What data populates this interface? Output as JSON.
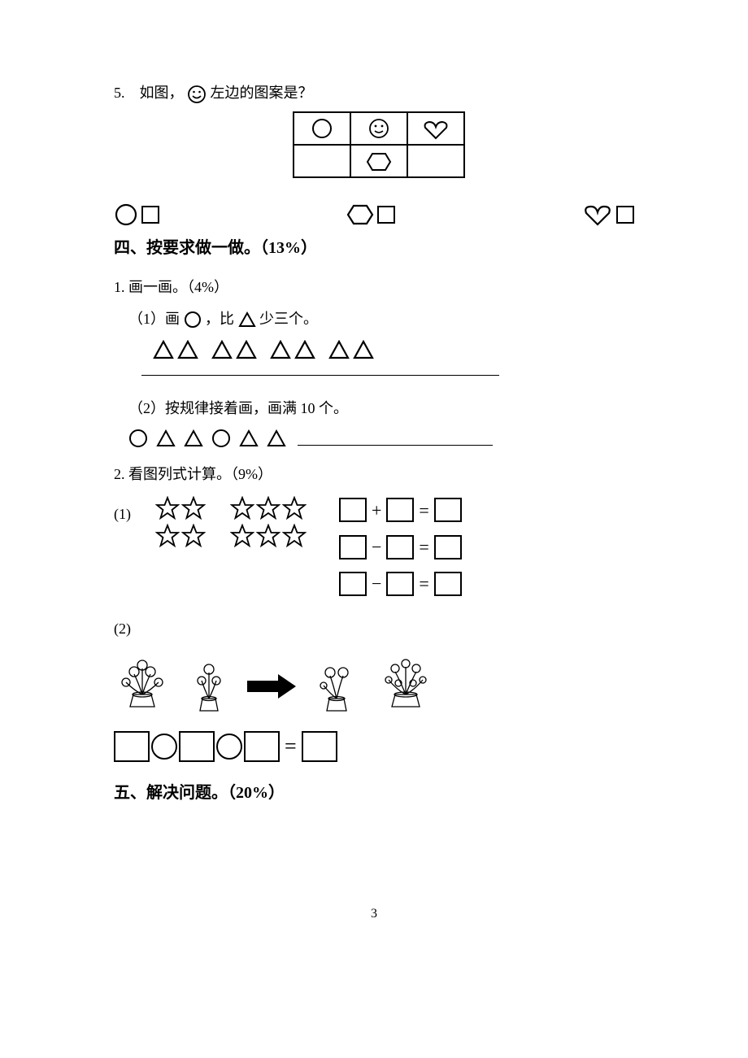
{
  "q5": {
    "prefix": "5.　如图，",
    "suffix": " 左边的图案是？"
  },
  "table": {
    "row1": [
      "circle",
      "smiley",
      "heart"
    ],
    "row2": [
      "",
      "hexagon",
      ""
    ]
  },
  "choices": [
    {
      "shape": "circle"
    },
    {
      "shape": "hexagon"
    },
    {
      "shape": "heart"
    }
  ],
  "section4": {
    "title": "四、按要求做一做。（13%）",
    "q1": {
      "heading": "1. 画一画。（4%）",
      "a_prefix": "（1）画 ",
      "a_mid": " ，比",
      "a_suffix": " 少三个。",
      "triangles_count": 8,
      "b_text": "（2）按规律接着画，画满 10 个。",
      "pattern": [
        "circle",
        "triangle",
        "triangle",
        "circle",
        "triangle",
        "triangle"
      ]
    },
    "q2": {
      "heading": "2. 看图列式计算。（9%）",
      "part1_label": "(1)",
      "stars_left": {
        "rows": [
          2,
          2
        ]
      },
      "stars_right": {
        "rows": [
          3,
          3
        ]
      },
      "equations": [
        {
          "op1": "+",
          "op2": "="
        },
        {
          "op1": "−",
          "op2": "="
        },
        {
          "op1": "−",
          "op2": "="
        }
      ],
      "part2_label": "(2)"
    }
  },
  "section5": {
    "title": "五、解决问题。（20%）"
  },
  "pagenum": "3",
  "colors": {
    "stroke": "#000000",
    "bg": "#ffffff"
  }
}
